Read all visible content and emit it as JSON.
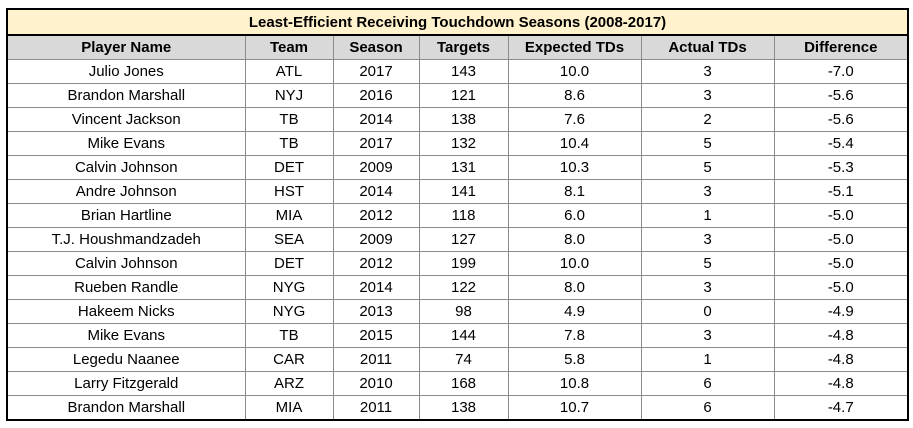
{
  "chart_data": {
    "type": "table",
    "title": "Least-Efficient Receiving Touchdown Seasons (2008-2017)",
    "columns": [
      "Player Name",
      "Team",
      "Season",
      "Targets",
      "Expected TDs",
      "Actual TDs",
      "Difference"
    ],
    "rows": [
      [
        "Julio Jones",
        "ATL",
        "2017",
        "143",
        "10.0",
        "3",
        "-7.0"
      ],
      [
        "Brandon Marshall",
        "NYJ",
        "2016",
        "121",
        "8.6",
        "3",
        "-5.6"
      ],
      [
        "Vincent Jackson",
        "TB",
        "2014",
        "138",
        "7.6",
        "2",
        "-5.6"
      ],
      [
        "Mike Evans",
        "TB",
        "2017",
        "132",
        "10.4",
        "5",
        "-5.4"
      ],
      [
        "Calvin Johnson",
        "DET",
        "2009",
        "131",
        "10.3",
        "5",
        "-5.3"
      ],
      [
        "Andre Johnson",
        "HST",
        "2014",
        "141",
        "8.1",
        "3",
        "-5.1"
      ],
      [
        "Brian Hartline",
        "MIA",
        "2012",
        "118",
        "6.0",
        "1",
        "-5.0"
      ],
      [
        "T.J. Houshmandzadeh",
        "SEA",
        "2009",
        "127",
        "8.0",
        "3",
        "-5.0"
      ],
      [
        "Calvin Johnson",
        "DET",
        "2012",
        "199",
        "10.0",
        "5",
        "-5.0"
      ],
      [
        "Rueben Randle",
        "NYG",
        "2014",
        "122",
        "8.0",
        "3",
        "-5.0"
      ],
      [
        "Hakeem Nicks",
        "NYG",
        "2013",
        "98",
        "4.9",
        "0",
        "-4.9"
      ],
      [
        "Mike Evans",
        "TB",
        "2015",
        "144",
        "7.8",
        "3",
        "-4.8"
      ],
      [
        "Legedu Naanee",
        "CAR",
        "2011",
        "74",
        "5.8",
        "1",
        "-4.8"
      ],
      [
        "Larry Fitzgerald",
        "ARZ",
        "2010",
        "168",
        "10.8",
        "6",
        "-4.8"
      ],
      [
        "Brandon Marshall",
        "MIA",
        "2011",
        "138",
        "10.7",
        "6",
        "-4.7"
      ]
    ]
  },
  "colors": {
    "title_fill": "#fff2cc",
    "header_fill": "#d9d9d9",
    "grid": "#8c8c8c",
    "border": "#000000"
  }
}
